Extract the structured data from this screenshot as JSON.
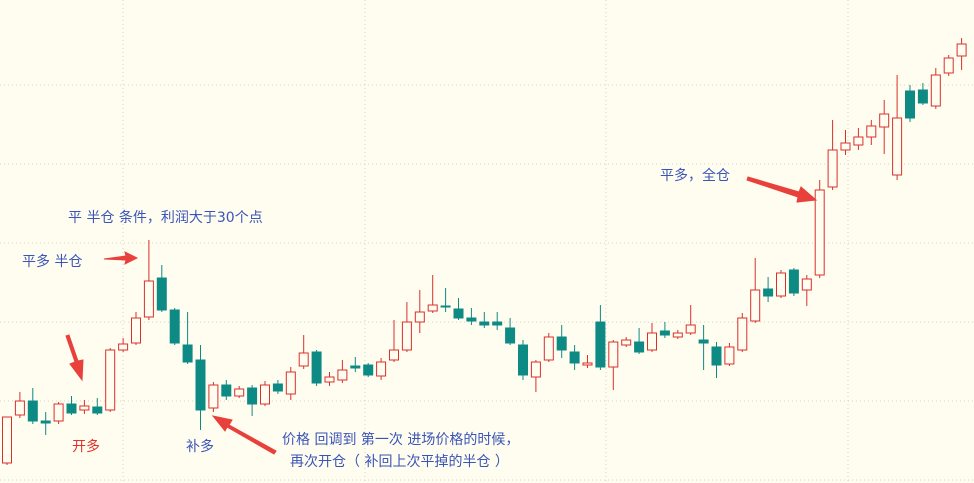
{
  "chart_data": {
    "type": "candlestick",
    "ylim": [
      0,
      483
    ],
    "grid": true,
    "up_color": "#d9302c",
    "down_color": "#0e8a84",
    "series": [
      {
        "open": [
          20,
          68,
          82,
          62,
          62,
          79,
          73,
          76,
          73,
          133,
          140,
          166,
          205,
          173,
          138,
          123,
          75,
          98,
          87,
          95,
          79,
          99,
          89,
          117,
          131,
          101,
          103,
          117,
          118,
          107,
          123,
          133,
          161,
          172,
          177,
          174,
          165,
          161,
          161,
          155,
          138,
          106,
          123,
          146,
          131,
          118,
          161,
          116,
          138,
          141,
          133,
          152,
          146,
          150,
          143,
          136,
          119,
          133,
          162,
          194,
          187,
          213,
          193,
          208,
          296,
          333,
          338,
          346,
          356,
          308,
          392,
          393,
          377,
          410,
          427
        ],
        "close": [
          66,
          82,
          62,
          60,
          79,
          70,
          77,
          70,
          133,
          139,
          165,
          202,
          173,
          140,
          121,
          73,
          98,
          87,
          94,
          79,
          98,
          92,
          111,
          130,
          100,
          106,
          113,
          115,
          108,
          121,
          133,
          161,
          171,
          178,
          176,
          165,
          162,
          158,
          158,
          140,
          108,
          121,
          146,
          133,
          120,
          120,
          116,
          141,
          143,
          131,
          150,
          148,
          150,
          158,
          140,
          118,
          136,
          165,
          193,
          187,
          210,
          190,
          204,
          293,
          333,
          340,
          346,
          357,
          369,
          365,
          365,
          380,
          408,
          425,
          439
        ],
        "high": [
          66,
          91,
          95,
          71,
          81,
          87,
          83,
          85,
          135,
          145,
          171,
          243,
          218,
          175,
          171,
          138,
          101,
          103,
          97,
          98,
          102,
          103,
          116,
          148,
          133,
          111,
          123,
          126,
          120,
          125,
          163,
          181,
          193,
          208,
          195,
          185,
          175,
          171,
          171,
          165,
          143,
          123,
          150,
          158,
          138,
          128,
          178,
          143,
          146,
          155,
          160,
          161,
          153,
          178,
          158,
          141,
          140,
          170,
          225,
          206,
          213,
          215,
          208,
          303,
          363,
          353,
          355,
          363,
          383,
          408,
          398,
          400,
          415,
          428,
          445
        ],
        "low": [
          18,
          65,
          59,
          48,
          59,
          68,
          69,
          68,
          71,
          131,
          138,
          163,
          171,
          138,
          119,
          53,
          71,
          83,
          85,
          67,
          77,
          89,
          83,
          114,
          97,
          97,
          100,
          111,
          106,
          103,
          121,
          131,
          150,
          170,
          171,
          163,
          158,
          155,
          153,
          138,
          103,
          91,
          121,
          125,
          113,
          115,
          113,
          93,
          136,
          129,
          131,
          145,
          144,
          148,
          113,
          105,
          117,
          131,
          160,
          181,
          185,
          187,
          177,
          205,
          293,
          328,
          333,
          338,
          329,
          303,
          361,
          378,
          374,
          407,
          413
        ]
      }
    ],
    "annotations": [
      {
        "text": "平 半仓 条件，利润大于30个点",
        "color": "#3a55b8"
      },
      {
        "text": "平多 半仓",
        "color": "#3a55b8"
      },
      {
        "text": "开多",
        "color": "#e0312b"
      },
      {
        "text": "补多",
        "color": "#3a55b8"
      },
      {
        "text": "价格 回调到 第一次 进场价格的时候，",
        "color": "#3a55b8"
      },
      {
        "text": "再次开仓（ 补回上次平掉的半仓 ）",
        "color": "#3a55b8"
      },
      {
        "text": "平多，全仓",
        "color": "#3a55b8"
      }
    ]
  }
}
